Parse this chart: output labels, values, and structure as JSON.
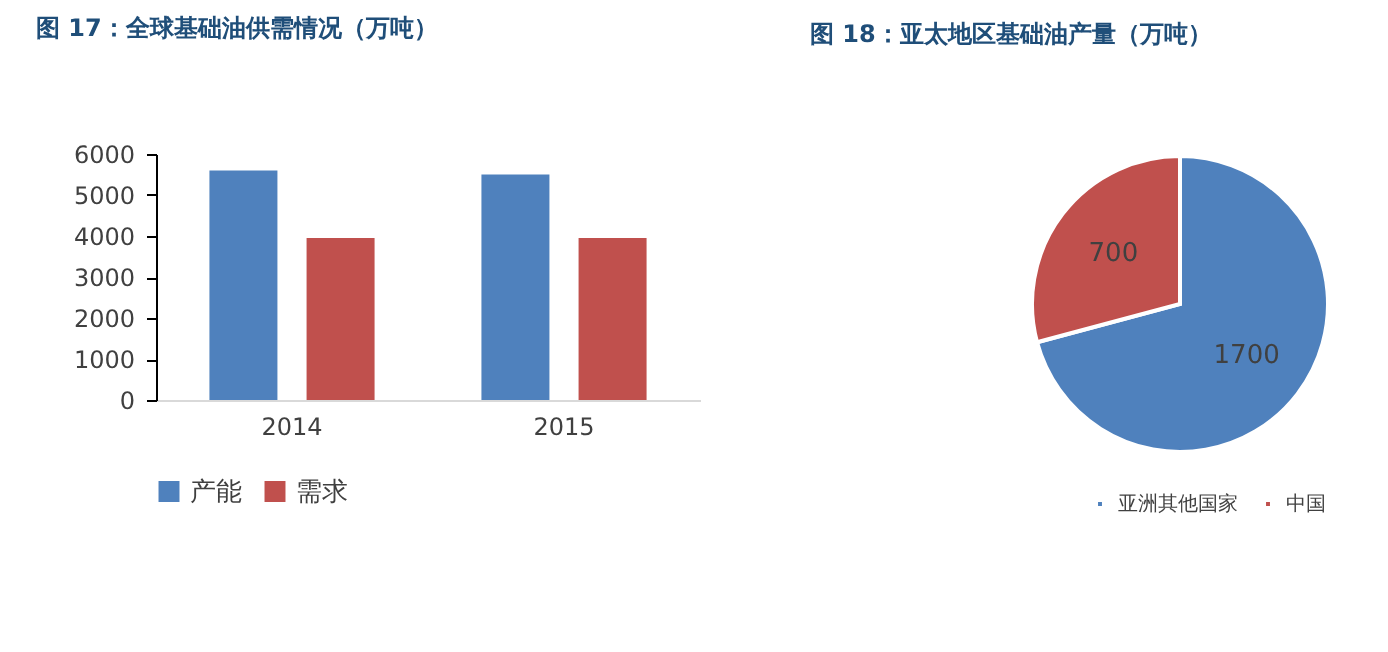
{
  "chart_data": [
    {
      "type": "bar",
      "title": "图 17：全球基础油供需情况（万吨）",
      "categories": [
        "2014",
        "2015"
      ],
      "series": [
        {
          "name": "产能",
          "color": "#4f81bd",
          "values": [
            5600,
            5500
          ]
        },
        {
          "name": "需求",
          "color": "#c0504d",
          "values": [
            3950,
            3950
          ]
        }
      ],
      "ylim": [
        0,
        6000
      ],
      "yticks": [
        0,
        1000,
        2000,
        3000,
        4000,
        5000,
        6000
      ],
      "grid": false,
      "legend": "bottom"
    },
    {
      "type": "pie",
      "title": "图 18：亚太地区基础油产量（万吨）",
      "categories": [
        "亚洲其他国家",
        "中国"
      ],
      "values": [
        1700,
        700
      ],
      "colors": [
        "#4f81bd",
        "#c0504d"
      ],
      "data_labels": true,
      "legend": "bottom"
    }
  ]
}
